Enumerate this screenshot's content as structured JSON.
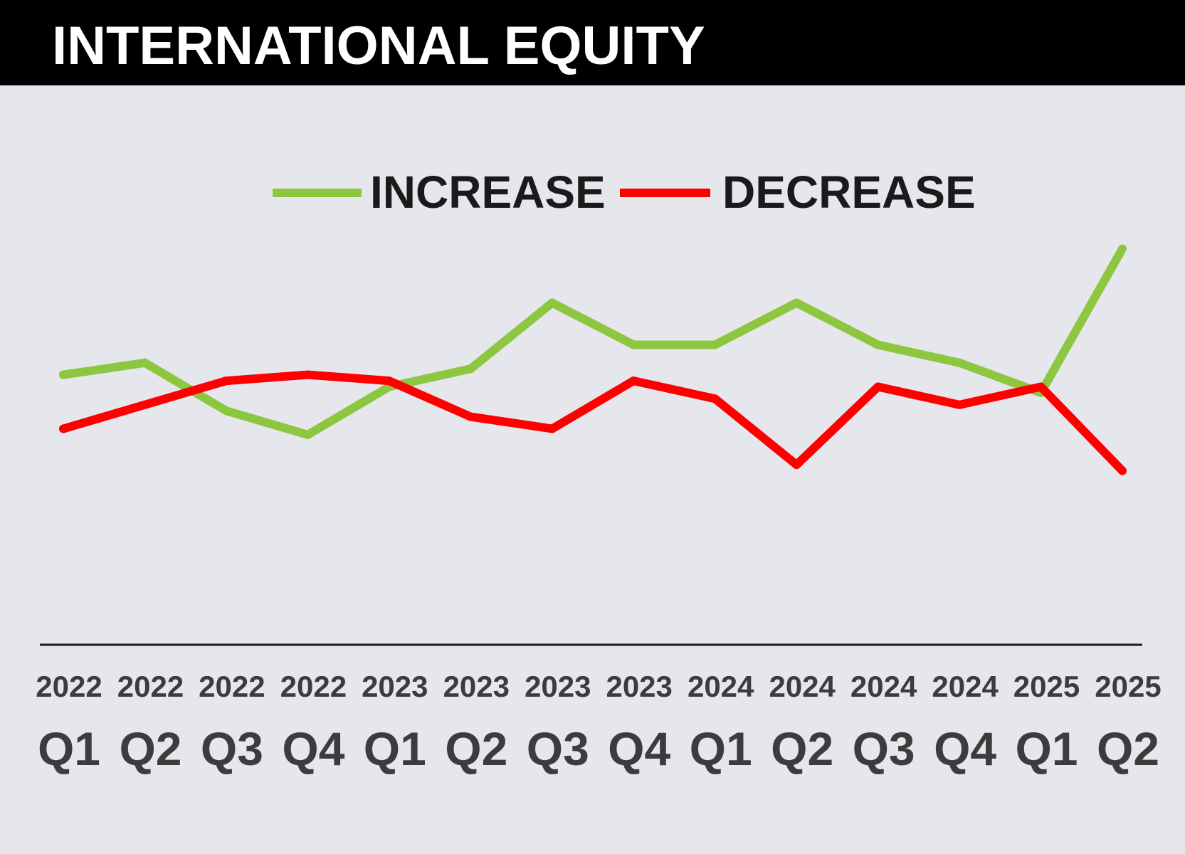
{
  "title": "INTERNATIONAL EQUITY",
  "colors": {
    "header_bg": "#000000",
    "background": "#e6e7ec",
    "increase": "#8dc63f",
    "decrease": "#ff0000",
    "axis": "#1a1a1a",
    "tick_text": "#3c3c3c"
  },
  "chart_data": {
    "type": "line",
    "title": "INTERNATIONAL EQUITY",
    "xlabel": "",
    "ylabel": "",
    "x_years": [
      "2022",
      "2022",
      "2022",
      "2022",
      "2023",
      "2023",
      "2023",
      "2023",
      "2024",
      "2024",
      "2024",
      "2024",
      "2025",
      "2025"
    ],
    "x_quarters": [
      "Q1",
      "Q2",
      "Q3",
      "Q4",
      "Q1",
      "Q2",
      "Q3",
      "Q4",
      "Q1",
      "Q2",
      "Q3",
      "Q4",
      "Q1",
      "Q2"
    ],
    "y_axis_labels": "none",
    "ylim": [
      0,
      100
    ],
    "grid": false,
    "legend": "top-center",
    "series": [
      {
        "name": "INCREASE",
        "color": "#8dc63f",
        "values": [
          59,
          61,
          53,
          49,
          57,
          60,
          71,
          64,
          64,
          71,
          64,
          61,
          56,
          80
        ]
      },
      {
        "name": "DECREASE",
        "color": "#ff0000",
        "values": [
          50,
          54,
          58,
          59,
          58,
          52,
          50,
          58,
          55,
          44,
          57,
          54,
          57,
          43
        ]
      }
    ]
  }
}
